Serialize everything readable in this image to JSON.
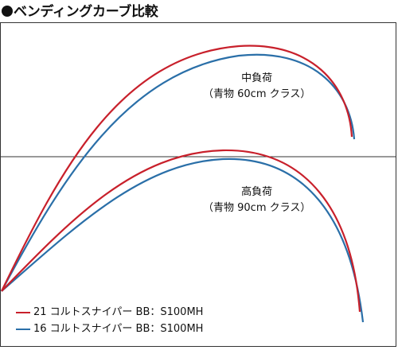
{
  "title": "ベンディングカーブ比較",
  "panels": [
    {
      "load": "中負荷",
      "condition": "（青物 60cm クラス）"
    },
    {
      "load": "高負荷",
      "condition": "（青物 90cm クラス）"
    }
  ],
  "series": [
    {
      "name": "21 コルトスナイパー BB：S100MH",
      "color": "#c8202b"
    },
    {
      "name": "16 コルトスナイパー BB：S100MH",
      "color": "#2a6fa8"
    }
  ]
}
